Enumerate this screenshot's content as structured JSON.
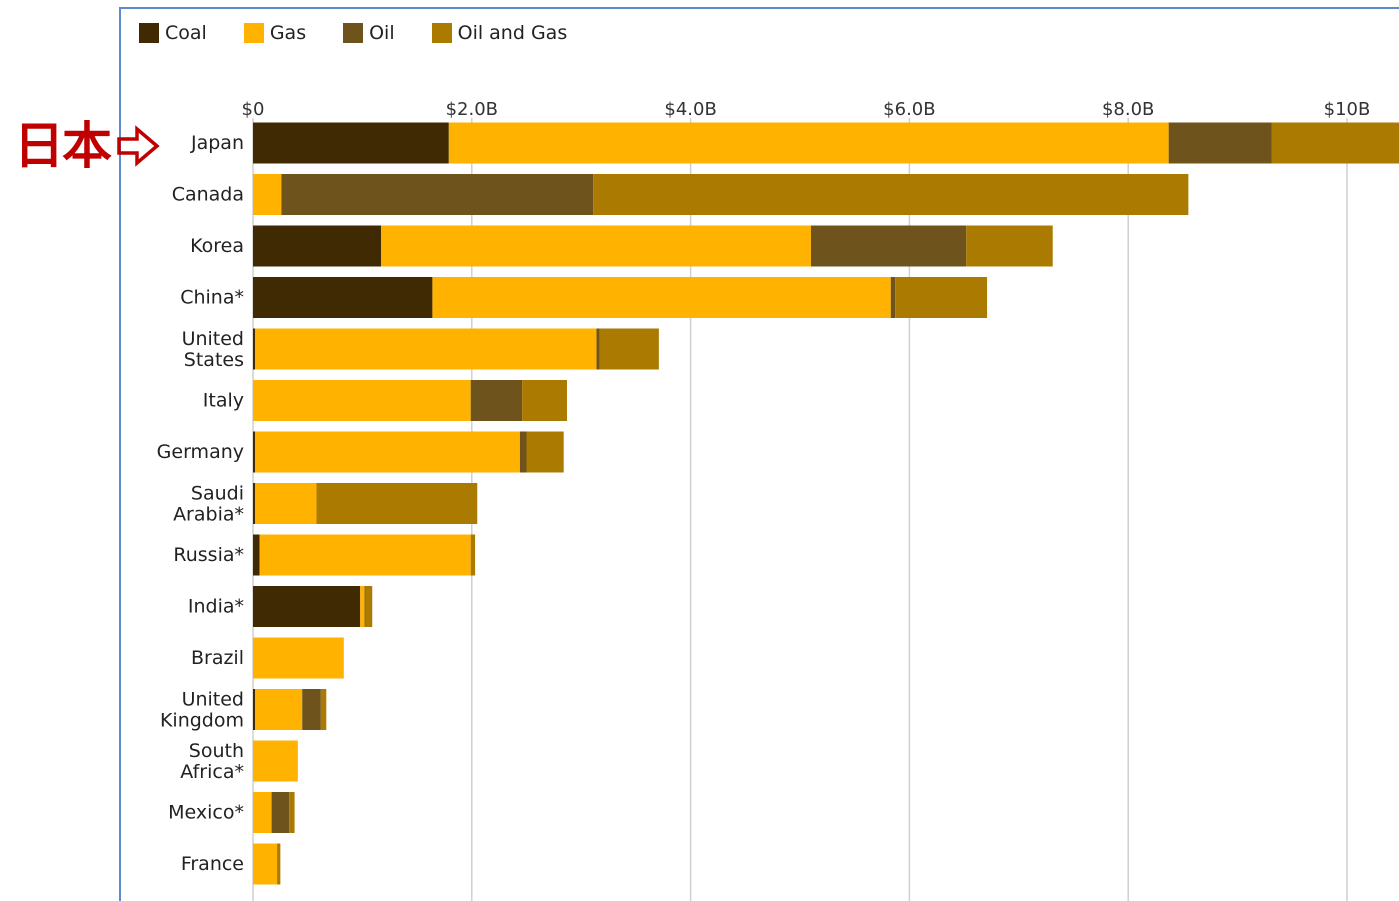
{
  "annotation": {
    "label": "日本",
    "arrow_icon": "right-arrow-outline-icon",
    "color": "#c00000"
  },
  "chart_data": {
    "type": "bar",
    "orientation": "horizontal",
    "stacked": true,
    "title": "",
    "xlabel": "",
    "ylabel": "",
    "xlim": [
      0,
      10.5
    ],
    "x_ticks": [
      {
        "value": 0,
        "label": "$0"
      },
      {
        "value": 2,
        "label": "$2.0B"
      },
      {
        "value": 4,
        "label": "$4.0B"
      },
      {
        "value": 6,
        "label": "$6.0B"
      },
      {
        "value": 8,
        "label": "$8.0B"
      },
      {
        "value": 10,
        "label": "$10B"
      }
    ],
    "grid": true,
    "legend_position": "top-left",
    "categories": [
      [
        "Japan"
      ],
      [
        "Canada"
      ],
      [
        "Korea"
      ],
      [
        "China*"
      ],
      [
        "United",
        "States"
      ],
      [
        "Italy"
      ],
      [
        "Germany"
      ],
      [
        "Saudi",
        "Arabia*"
      ],
      [
        "Russia*"
      ],
      [
        "India*"
      ],
      [
        "Brazil"
      ],
      [
        "United",
        "Kingdom"
      ],
      [
        "South",
        "Africa*"
      ],
      [
        "Mexico*"
      ],
      [
        "France"
      ]
    ],
    "series": [
      {
        "name": "Coal",
        "color": "#3f2a04",
        "values": [
          1.79,
          0.0,
          1.17,
          1.64,
          0.02,
          0.0,
          0.02,
          0.02,
          0.06,
          0.98,
          0.0,
          0.02,
          0.0,
          0.0,
          0.0
        ]
      },
      {
        "name": "Gas",
        "color": "#ffb300",
        "values": [
          6.58,
          0.26,
          3.93,
          4.19,
          3.12,
          1.99,
          2.42,
          0.56,
          1.93,
          0.04,
          0.83,
          0.43,
          0.41,
          0.17,
          0.22
        ]
      },
      {
        "name": "Oil",
        "color": "#6e531c",
        "values": [
          0.94,
          2.85,
          1.42,
          0.04,
          0.03,
          0.47,
          0.06,
          0.0,
          0.0,
          0.01,
          0.0,
          0.17,
          0.0,
          0.16,
          0.0
        ]
      },
      {
        "name": "Oil and Gas",
        "color": "#ab7a00",
        "values": [
          1.2,
          5.44,
          0.79,
          0.84,
          0.54,
          0.41,
          0.34,
          1.47,
          0.04,
          0.06,
          0.0,
          0.05,
          0.0,
          0.05,
          0.03
        ]
      }
    ]
  }
}
